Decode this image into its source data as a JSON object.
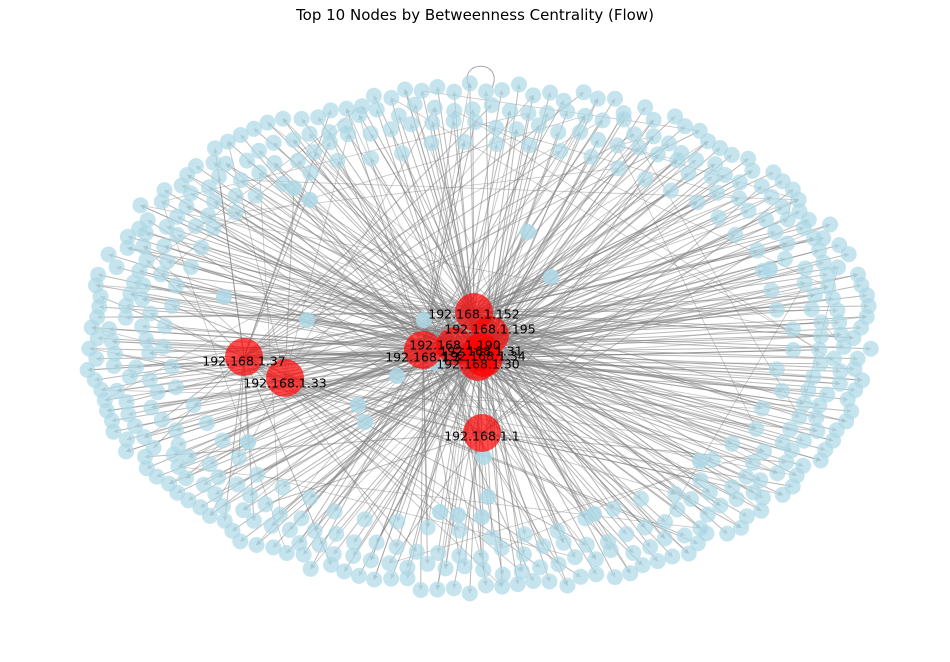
{
  "title": "Top 10 Nodes by Betweenness Centrality (Flow)",
  "colors": {
    "top_node": "#ff0000",
    "node": "#add8e6",
    "edge": "#808080",
    "label": "#000000",
    "background": "#ffffff"
  },
  "top_nodes": [
    {
      "label": "192.168.1.152"
    },
    {
      "label": "192.168.1.195"
    },
    {
      "label": "192.168.1.190"
    },
    {
      "label": "192.168.1.31"
    },
    {
      "label": "192.168.1.34"
    },
    {
      "label": "192.168.1.30"
    },
    {
      "label": "192.168.1.3"
    },
    {
      "label": "192.168.1.37"
    },
    {
      "label": "192.168.1.33"
    },
    {
      "label": "192.168.1.1"
    }
  ]
}
